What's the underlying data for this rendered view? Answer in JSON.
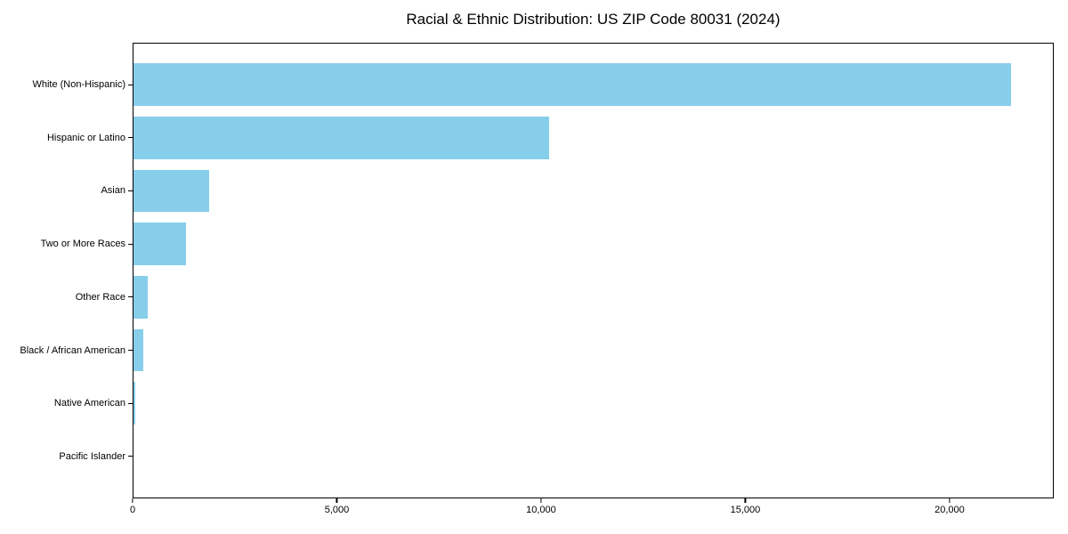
{
  "chart_data": {
    "type": "bar",
    "orientation": "horizontal",
    "title": "Racial & Ethnic Distribution: US ZIP Code 80031 (2024)",
    "categories": [
      "White (Non-Hispanic)",
      "Hispanic or Latino",
      "Asian",
      "Two or More Races",
      "Other Race",
      "Black / African American",
      "Native American",
      "Pacific Islander"
    ],
    "values": [
      21500,
      10200,
      1870,
      1310,
      370,
      255,
      55,
      10
    ],
    "xlabel": "",
    "ylabel": "",
    "xlim": [
      0,
      22550
    ],
    "x_ticks": [
      0,
      5000,
      10000,
      15000,
      20000
    ],
    "x_tick_labels": [
      "0",
      "5,000",
      "10,000",
      "15,000",
      "20,000"
    ],
    "bar_color": "#87CEEB",
    "frame_color": "#000000",
    "grid": false,
    "legend": null
  }
}
